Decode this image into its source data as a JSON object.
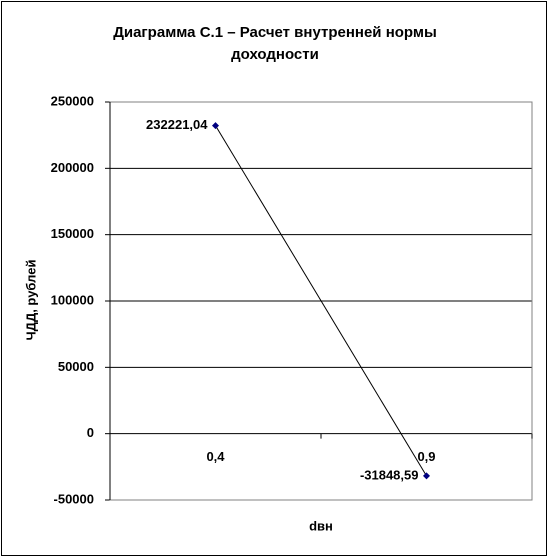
{
  "chart_data": {
    "type": "line",
    "title": "Диаграмма С.1 – Расчет внутренней нормы доходности",
    "x_label": "dвн",
    "y_label": "ЧДД, рублей",
    "categories": [
      "0,4",
      "0,9"
    ],
    "values": [
      232221.04,
      -31848.59
    ],
    "value_labels": [
      "232221,04",
      "-31848,59"
    ],
    "color": "#000080",
    "line_color": "#000000",
    "ylim": [
      -50000,
      250000
    ],
    "yticks": [
      -50000,
      0,
      50000,
      100000,
      150000,
      200000,
      250000
    ],
    "grid": true
  }
}
